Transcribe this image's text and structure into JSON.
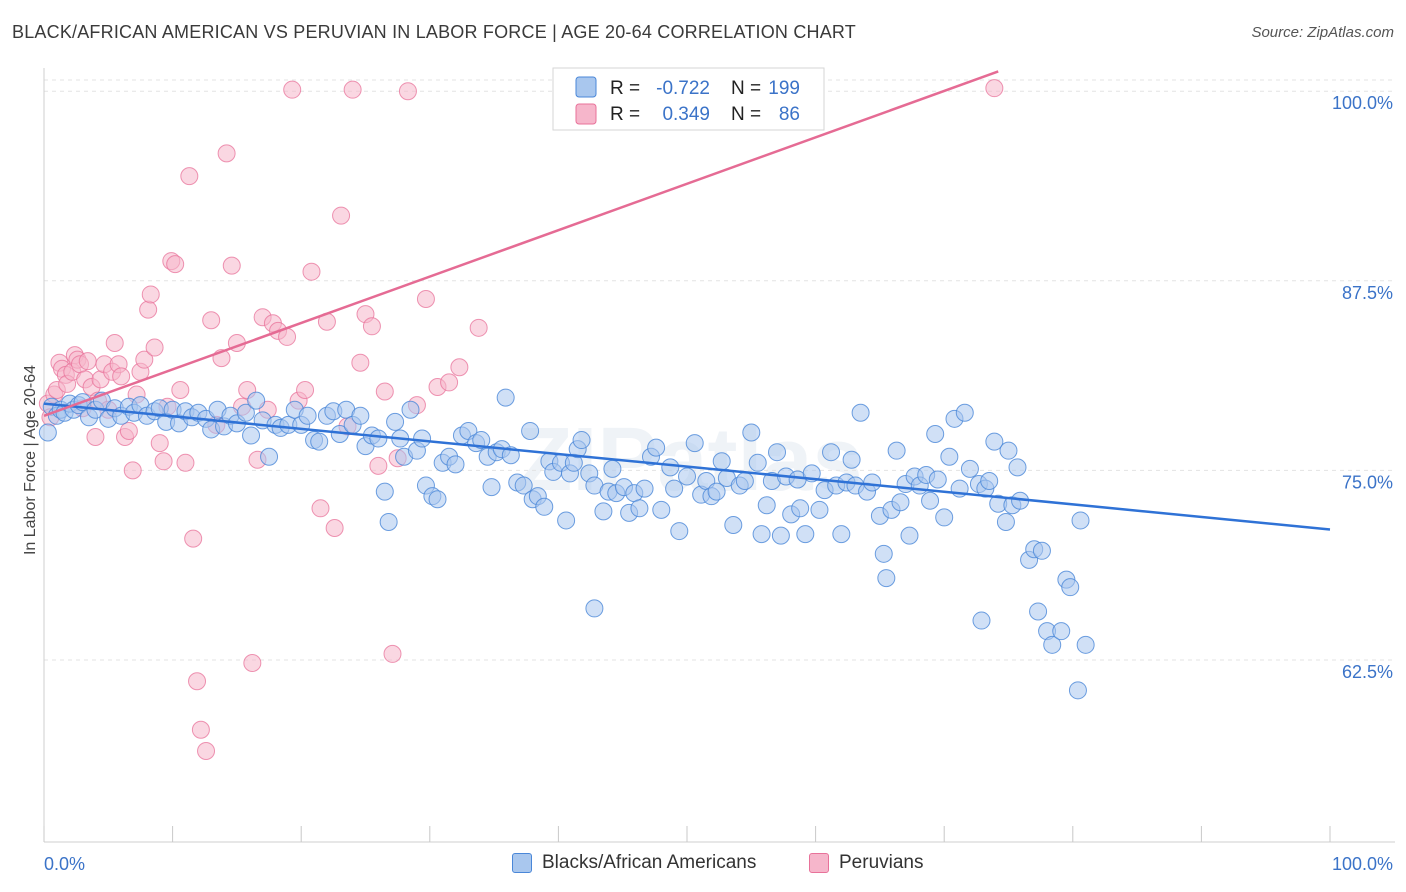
{
  "title": "BLACK/AFRICAN AMERICAN VS PERUVIAN IN LABOR FORCE | AGE 20-64 CORRELATION CHART",
  "source": "Source: ZipAtlas.com",
  "colors": {
    "blue": "#4a87d8",
    "blue_fill": "#a9c7ee",
    "pink": "#e8729a",
    "pink_fill": "#f6b6cb",
    "axis_text": "#3b73c8",
    "grid": "#e3e3e3"
  },
  "chart_data": {
    "type": "scatter",
    "title": "BLACK/AFRICAN AMERICAN VS PERUVIAN IN LABOR FORCE | AGE 20-64 CORRELATION CHART",
    "xlabel": "",
    "ylabel": "In Labor Force | Age 20-64",
    "xlim": [
      0,
      100
    ],
    "ylim": [
      50.5,
      101.2
    ],
    "x_tick_labels": [
      "0.0%",
      "100.0%"
    ],
    "y_ticks": [
      62.5,
      75.0,
      87.5,
      100.0
    ],
    "y_tick_labels": [
      "62.5%",
      "75.0%",
      "87.5%",
      "100.0%"
    ],
    "grid": true,
    "legend_position": "top-center",
    "legend": [
      {
        "r_label": "R =",
        "r_value": "-0.722",
        "n_label": "N =",
        "n_value": "199"
      },
      {
        "r_label": "R =",
        "r_value": "0.349",
        "n_label": "N =",
        "n_value": "86"
      }
    ],
    "series": [
      {
        "name": "Blacks/African Americans",
        "trend": {
          "x": [
            0,
            100
          ],
          "y": [
            79.4,
            71.1
          ]
        },
        "points": [
          [
            0.3,
            77.5
          ],
          [
            0.6,
            79.2
          ],
          [
            1.0,
            78.6
          ],
          [
            1.3,
            79.0
          ],
          [
            1.6,
            78.8
          ],
          [
            2.0,
            79.4
          ],
          [
            2.3,
            79.0
          ],
          [
            2.7,
            79.3
          ],
          [
            3.0,
            79.5
          ],
          [
            3.5,
            78.5
          ],
          [
            4.0,
            79.0
          ],
          [
            4.5,
            79.6
          ],
          [
            5.0,
            78.4
          ],
          [
            5.5,
            79.1
          ],
          [
            6.0,
            78.6
          ],
          [
            6.6,
            79.2
          ],
          [
            7.0,
            78.8
          ],
          [
            7.5,
            79.3
          ],
          [
            8.0,
            78.6
          ],
          [
            8.6,
            78.9
          ],
          [
            9.0,
            79.1
          ],
          [
            9.5,
            78.2
          ],
          [
            10.0,
            79.0
          ],
          [
            10.5,
            78.1
          ],
          [
            11.0,
            78.9
          ],
          [
            11.5,
            78.5
          ],
          [
            12.0,
            78.8
          ],
          [
            12.6,
            78.4
          ],
          [
            13.0,
            77.7
          ],
          [
            13.5,
            79.0
          ],
          [
            14.0,
            77.9
          ],
          [
            14.5,
            78.6
          ],
          [
            15.0,
            78.1
          ],
          [
            15.7,
            78.8
          ],
          [
            16.1,
            77.3
          ],
          [
            16.5,
            79.6
          ],
          [
            17.0,
            78.3
          ],
          [
            17.5,
            75.9
          ],
          [
            18.0,
            78.0
          ],
          [
            18.4,
            77.8
          ],
          [
            19.0,
            78.0
          ],
          [
            19.5,
            79.0
          ],
          [
            20.0,
            78.0
          ],
          [
            20.5,
            78.6
          ],
          [
            21.0,
            77.0
          ],
          [
            21.4,
            76.9
          ],
          [
            22.0,
            78.6
          ],
          [
            22.5,
            78.9
          ],
          [
            23.0,
            77.4
          ],
          [
            23.5,
            79.0
          ],
          [
            24.0,
            78.0
          ],
          [
            24.6,
            78.6
          ],
          [
            25.0,
            76.6
          ],
          [
            25.5,
            77.3
          ],
          [
            26.0,
            77.1
          ],
          [
            26.5,
            73.6
          ],
          [
            26.8,
            71.6
          ],
          [
            27.3,
            78.2
          ],
          [
            27.7,
            77.1
          ],
          [
            28.0,
            75.9
          ],
          [
            28.5,
            79.0
          ],
          [
            29.0,
            76.3
          ],
          [
            29.4,
            77.1
          ],
          [
            29.7,
            74.0
          ],
          [
            30.2,
            73.3
          ],
          [
            30.6,
            73.1
          ],
          [
            31.0,
            75.5
          ],
          [
            31.5,
            75.9
          ],
          [
            32.0,
            75.4
          ],
          [
            32.5,
            77.3
          ],
          [
            33.0,
            77.6
          ],
          [
            33.6,
            76.8
          ],
          [
            34.0,
            77.0
          ],
          [
            34.5,
            75.9
          ],
          [
            34.8,
            73.9
          ],
          [
            35.2,
            76.2
          ],
          [
            35.6,
            76.4
          ],
          [
            35.9,
            79.8
          ],
          [
            36.3,
            76.0
          ],
          [
            36.8,
            74.2
          ],
          [
            37.3,
            74.0
          ],
          [
            37.8,
            77.6
          ],
          [
            38.0,
            73.1
          ],
          [
            38.4,
            73.3
          ],
          [
            38.9,
            72.6
          ],
          [
            39.3,
            75.6
          ],
          [
            39.6,
            74.9
          ],
          [
            40.2,
            75.5
          ],
          [
            40.6,
            71.7
          ],
          [
            40.9,
            74.8
          ],
          [
            41.2,
            75.5
          ],
          [
            41.5,
            76.4
          ],
          [
            41.8,
            77.0
          ],
          [
            42.4,
            74.8
          ],
          [
            42.8,
            74.0
          ],
          [
            42.8,
            65.9
          ],
          [
            43.5,
            72.3
          ],
          [
            43.9,
            73.6
          ],
          [
            44.2,
            75.1
          ],
          [
            44.5,
            73.5
          ],
          [
            45.1,
            73.9
          ],
          [
            45.5,
            72.2
          ],
          [
            45.9,
            73.5
          ],
          [
            46.3,
            72.5
          ],
          [
            46.7,
            73.8
          ],
          [
            47.2,
            75.9
          ],
          [
            47.6,
            76.5
          ],
          [
            48.0,
            72.4
          ],
          [
            48.7,
            75.2
          ],
          [
            49.0,
            73.8
          ],
          [
            49.4,
            71.0
          ],
          [
            50.0,
            74.6
          ],
          [
            50.6,
            76.8
          ],
          [
            51.1,
            73.4
          ],
          [
            51.5,
            74.3
          ],
          [
            51.9,
            73.3
          ],
          [
            52.3,
            73.6
          ],
          [
            52.7,
            75.6
          ],
          [
            53.1,
            74.5
          ],
          [
            53.6,
            71.4
          ],
          [
            54.1,
            74.0
          ],
          [
            54.5,
            74.3
          ],
          [
            55.0,
            77.5
          ],
          [
            55.5,
            75.5
          ],
          [
            55.8,
            70.8
          ],
          [
            56.2,
            72.7
          ],
          [
            56.6,
            74.3
          ],
          [
            57.0,
            76.2
          ],
          [
            57.3,
            70.7
          ],
          [
            57.7,
            74.6
          ],
          [
            58.1,
            72.1
          ],
          [
            58.6,
            74.4
          ],
          [
            58.8,
            72.5
          ],
          [
            59.2,
            70.8
          ],
          [
            59.7,
            74.8
          ],
          [
            60.3,
            72.4
          ],
          [
            60.7,
            73.7
          ],
          [
            61.2,
            76.2
          ],
          [
            61.6,
            74.0
          ],
          [
            62.0,
            70.8
          ],
          [
            62.4,
            74.2
          ],
          [
            62.8,
            75.7
          ],
          [
            63.1,
            74.0
          ],
          [
            63.5,
            78.8
          ],
          [
            64.0,
            73.6
          ],
          [
            64.4,
            74.2
          ],
          [
            65.0,
            72.0
          ],
          [
            65.3,
            69.5
          ],
          [
            65.5,
            67.9
          ],
          [
            65.9,
            72.4
          ],
          [
            66.3,
            76.3
          ],
          [
            66.6,
            72.9
          ],
          [
            67.0,
            74.1
          ],
          [
            67.3,
            70.7
          ],
          [
            67.7,
            74.6
          ],
          [
            68.1,
            74.0
          ],
          [
            68.6,
            74.7
          ],
          [
            68.9,
            73.0
          ],
          [
            69.3,
            77.4
          ],
          [
            69.5,
            74.4
          ],
          [
            70.0,
            71.9
          ],
          [
            70.4,
            75.9
          ],
          [
            70.8,
            78.4
          ],
          [
            71.2,
            73.8
          ],
          [
            71.6,
            78.8
          ],
          [
            72.0,
            75.1
          ],
          [
            72.7,
            74.1
          ],
          [
            72.9,
            65.1
          ],
          [
            73.2,
            73.8
          ],
          [
            73.5,
            74.3
          ],
          [
            73.9,
            76.9
          ],
          [
            74.2,
            72.8
          ],
          [
            74.8,
            71.6
          ],
          [
            75.0,
            76.3
          ],
          [
            75.3,
            72.7
          ],
          [
            75.7,
            75.2
          ],
          [
            75.9,
            73.0
          ],
          [
            76.6,
            69.1
          ],
          [
            77.0,
            69.8
          ],
          [
            77.3,
            65.7
          ],
          [
            77.6,
            69.7
          ],
          [
            78.0,
            64.4
          ],
          [
            78.4,
            63.5
          ],
          [
            79.1,
            64.4
          ],
          [
            79.5,
            67.8
          ],
          [
            79.8,
            67.3
          ],
          [
            80.4,
            60.5
          ],
          [
            80.6,
            71.7
          ],
          [
            81.0,
            63.5
          ]
        ]
      },
      {
        "name": "Peruvians",
        "trend": {
          "x": [
            0,
            74.2
          ],
          "y": [
            78.6,
            101.3
          ]
        },
        "points": [
          [
            0.3,
            79.4
          ],
          [
            0.5,
            78.5
          ],
          [
            0.8,
            80.0
          ],
          [
            1.0,
            80.3
          ],
          [
            1.2,
            82.1
          ],
          [
            1.4,
            81.7
          ],
          [
            1.7,
            81.3
          ],
          [
            1.8,
            80.7
          ],
          [
            2.2,
            81.5
          ],
          [
            2.4,
            82.6
          ],
          [
            2.6,
            82.3
          ],
          [
            2.8,
            82.0
          ],
          [
            3.0,
            79.1
          ],
          [
            3.2,
            81.0
          ],
          [
            3.4,
            82.2
          ],
          [
            3.7,
            80.5
          ],
          [
            4.0,
            77.2
          ],
          [
            4.2,
            79.6
          ],
          [
            4.4,
            81.0
          ],
          [
            4.7,
            82.0
          ],
          [
            5.0,
            79.0
          ],
          [
            5.3,
            81.5
          ],
          [
            5.5,
            83.4
          ],
          [
            5.8,
            82.0
          ],
          [
            6.0,
            81.2
          ],
          [
            6.3,
            77.2
          ],
          [
            6.6,
            77.6
          ],
          [
            6.9,
            75.0
          ],
          [
            7.2,
            80.0
          ],
          [
            7.5,
            81.5
          ],
          [
            7.8,
            82.3
          ],
          [
            8.1,
            85.6
          ],
          [
            8.3,
            86.6
          ],
          [
            8.6,
            83.1
          ],
          [
            9.0,
            76.8
          ],
          [
            9.3,
            75.6
          ],
          [
            9.6,
            79.2
          ],
          [
            9.9,
            88.8
          ],
          [
            10.2,
            88.6
          ],
          [
            10.6,
            80.3
          ],
          [
            11.0,
            75.5
          ],
          [
            11.3,
            94.4
          ],
          [
            11.6,
            70.5
          ],
          [
            11.9,
            61.1
          ],
          [
            12.2,
            57.9
          ],
          [
            12.6,
            56.5
          ],
          [
            13.0,
            84.9
          ],
          [
            13.4,
            78.0
          ],
          [
            13.8,
            82.4
          ],
          [
            14.2,
            95.9
          ],
          [
            14.6,
            88.5
          ],
          [
            15.0,
            83.4
          ],
          [
            15.4,
            79.2
          ],
          [
            15.8,
            80.3
          ],
          [
            16.2,
            62.3
          ],
          [
            16.6,
            75.7
          ],
          [
            17.0,
            85.1
          ],
          [
            17.4,
            79.0
          ],
          [
            17.8,
            84.7
          ],
          [
            18.2,
            84.2
          ],
          [
            18.9,
            83.8
          ],
          [
            19.3,
            100.1
          ],
          [
            19.8,
            79.6
          ],
          [
            20.3,
            80.3
          ],
          [
            20.8,
            88.1
          ],
          [
            21.5,
            72.5
          ],
          [
            22.0,
            84.8
          ],
          [
            22.6,
            71.2
          ],
          [
            23.1,
            91.8
          ],
          [
            23.6,
            77.9
          ],
          [
            24.0,
            100.1
          ],
          [
            24.6,
            82.1
          ],
          [
            25.0,
            85.3
          ],
          [
            25.5,
            84.5
          ],
          [
            26.0,
            75.3
          ],
          [
            26.5,
            80.2
          ],
          [
            27.1,
            62.9
          ],
          [
            27.5,
            75.8
          ],
          [
            28.3,
            100.0
          ],
          [
            29.0,
            79.3
          ],
          [
            29.7,
            86.3
          ],
          [
            30.6,
            80.5
          ],
          [
            31.5,
            80.8
          ],
          [
            32.3,
            81.8
          ],
          [
            33.8,
            84.4
          ],
          [
            73.9,
            100.2
          ]
        ]
      }
    ]
  },
  "legend_bottom": {
    "blue_label": "Blacks/African Americans",
    "pink_label": "Peruvians"
  }
}
